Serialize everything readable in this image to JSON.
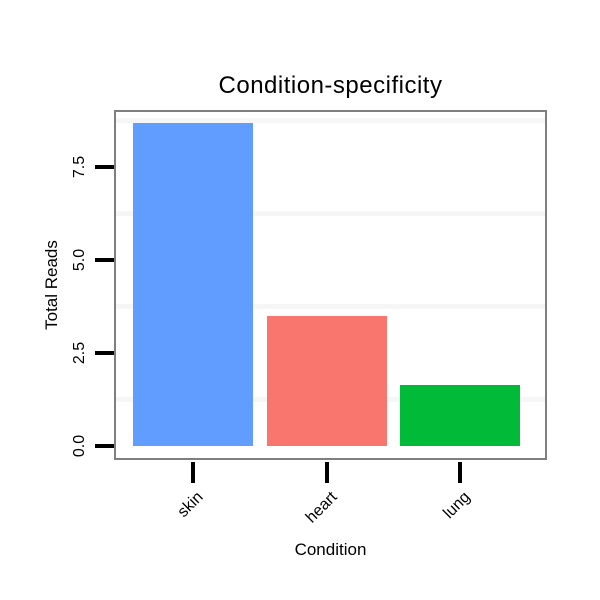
{
  "chart_data": {
    "type": "bar",
    "title": "Condition-specificity",
    "xlabel": "Condition",
    "ylabel": "Total Reads",
    "categories": [
      "skin",
      "heart",
      "lung"
    ],
    "values": [
      8.7,
      3.5,
      1.65
    ],
    "bar_colors": [
      "#619CFF",
      "#F8766D",
      "#00BA38"
    ],
    "ytick_values": [
      0,
      2.5,
      5,
      7.5
    ],
    "ytick_labels": [
      "0.0",
      "2.5",
      "5.0",
      "7.5"
    ],
    "ylim": [
      0,
      9.05
    ],
    "minor_gridlines": [
      1.25,
      3.75,
      6.25,
      8.75
    ],
    "grid": "minor-horizontal-only",
    "legend": "none",
    "x_tick_label_rotation_deg": 45,
    "y_tick_label_rotation_deg": 90,
    "panel_border_color": "#7F7F7F",
    "tick_color": "#000000",
    "minor_grid_color": "#F6F6F6",
    "text_color": "#000000",
    "background_color": "#FFFFFF"
  }
}
